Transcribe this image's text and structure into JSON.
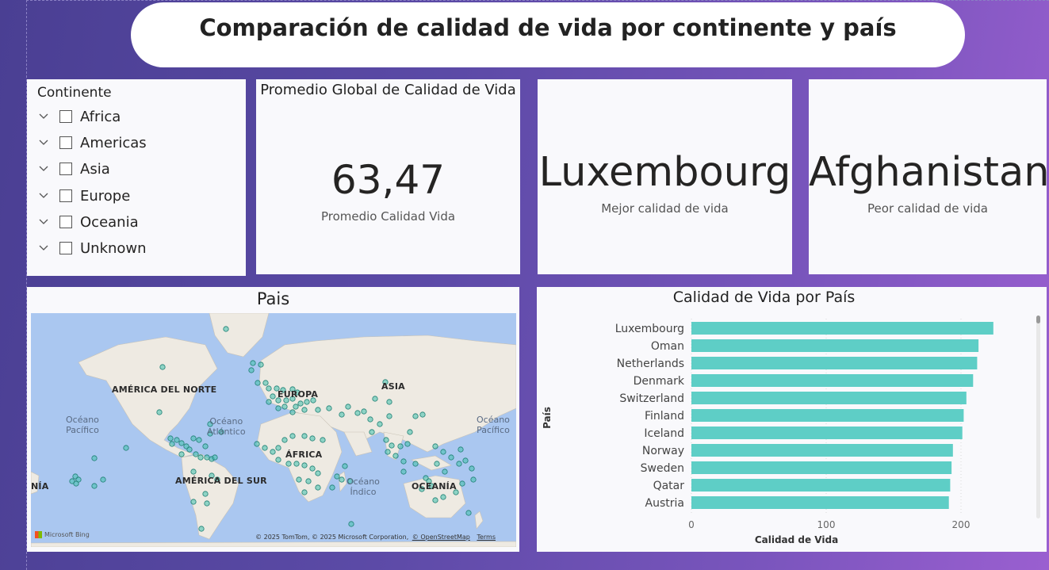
{
  "header": {
    "title": "Comparación de calidad de vida por continente y país"
  },
  "slicer": {
    "heading": "Continente",
    "items": [
      {
        "label": "Africa"
      },
      {
        "label": "Americas"
      },
      {
        "label": "Asia"
      },
      {
        "label": "Europe"
      },
      {
        "label": "Oceania"
      },
      {
        "label": "Unknown"
      }
    ]
  },
  "kpi_avg": {
    "title": "Promedio Global de Calidad de Vida",
    "value": "63,47",
    "subtitle": "Promedio Calidad Vida"
  },
  "kpi_best": {
    "value": "Luxembourg",
    "subtitle": "Mejor calidad de vida"
  },
  "kpi_worst": {
    "value": "Afghanistan",
    "subtitle": "Peor calidad de vida"
  },
  "map": {
    "title": "Pais",
    "labels": {
      "north_america": "AMÉRICA DEL NORTE",
      "south_america": "AMÉRICA DEL SUR",
      "europe": "EUROPA",
      "asia": "ASIA",
      "africa": "ÁFRICA",
      "oceania": "OCEANÍA",
      "edge": "NÍA"
    },
    "oceans": {
      "pacific_left": "Océano\nPacífico",
      "atlantic": "Océano\nAtlántico",
      "indian": "Océano\nÍndico",
      "pacific_right": "Océano\nPacífico"
    },
    "attribution": "© 2025 TomTom, © 2025 Microsoft Corporation,",
    "osm": "© OpenStreetMap",
    "terms": "Terms",
    "bing": "Microsoft Bing",
    "marker_color": "#3fbfad"
  },
  "chart_data": {
    "type": "bar",
    "orientation": "horizontal",
    "title": "Calidad de Vida por País",
    "xlabel": "Calidad de Vida",
    "ylabel": "País",
    "categories": [
      "Luxembourg",
      "Oman",
      "Netherlands",
      "Denmark",
      "Switzerland",
      "Finland",
      "Iceland",
      "Norway",
      "Sweden",
      "Qatar",
      "Austria"
    ],
    "values": [
      224,
      213,
      212,
      209,
      204,
      202,
      201,
      194,
      193,
      192,
      191
    ],
    "xlim": [
      0,
      250
    ],
    "xticks": [
      0,
      100,
      200
    ],
    "color": "#5ecec6",
    "grid": true
  }
}
